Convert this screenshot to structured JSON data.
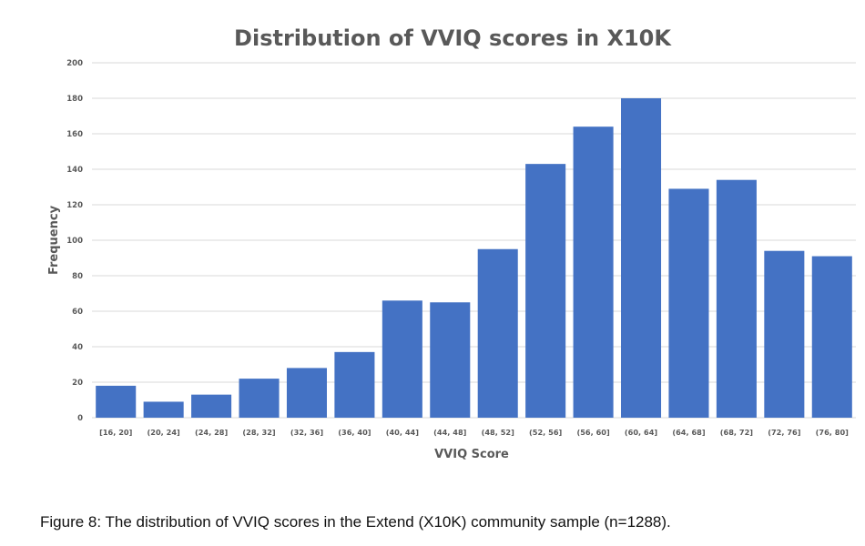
{
  "caption": "Figure 8: The distribution of VVIQ scores in the Extend (X10K) community sample (n=1288).",
  "chart_data": {
    "type": "bar",
    "title": "Distribution of VVIQ scores in X10K",
    "xlabel": "VVIQ Score",
    "ylabel": "Frequency",
    "ylim": [
      0,
      200
    ],
    "yticks": [
      0,
      20,
      40,
      60,
      80,
      100,
      120,
      140,
      160,
      180,
      200
    ],
    "grid": true,
    "bar_color": "#4472c4",
    "categories": [
      "[16, 20]",
      "(20, 24]",
      "(24, 28]",
      "(28, 32]",
      "(32, 36]",
      "(36, 40]",
      "(40, 44]",
      "(44, 48]",
      "(48, 52]",
      "(52, 56]",
      "(56, 60]",
      "(60, 64]",
      "(64, 68]",
      "(68, 72]",
      "(72, 76]",
      "(76, 80]"
    ],
    "values": [
      18,
      9,
      13,
      22,
      28,
      37,
      66,
      65,
      95,
      143,
      164,
      180,
      129,
      134,
      94,
      91
    ]
  }
}
